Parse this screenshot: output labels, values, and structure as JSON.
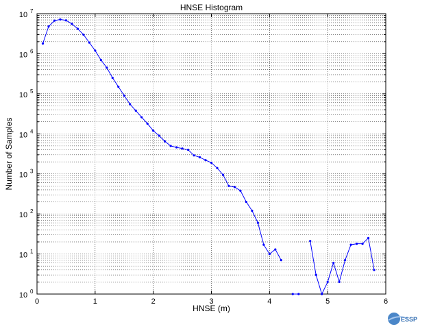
{
  "chart_data": {
    "type": "line",
    "title": "HNSE Histogram",
    "xlabel": "HNSE (m)",
    "ylabel": "Number of Samples",
    "xlim": [
      0,
      6
    ],
    "ylim": [
      1,
      10000000
    ],
    "yscale": "log",
    "x_ticks": [
      "0",
      "1",
      "2",
      "3",
      "4",
      "5",
      "6"
    ],
    "y_tick_exponents": [
      "0",
      "1",
      "2",
      "3",
      "4",
      "5",
      "6",
      "7"
    ],
    "y_tick_base": "10",
    "grid": "dotted major and minor",
    "series": [
      {
        "color": "#0000ff",
        "marker": "dot",
        "segments": [
          [
            [
              0.1,
              1800000
            ],
            [
              0.2,
              4800000
            ],
            [
              0.3,
              6700000
            ],
            [
              0.4,
              7200000
            ],
            [
              0.5,
              6800000
            ],
            [
              0.6,
              5600000
            ],
            [
              0.7,
              4200000
            ],
            [
              0.8,
              3000000
            ],
            [
              0.9,
              1900000
            ],
            [
              1.0,
              1200000
            ],
            [
              1.1,
              700000
            ],
            [
              1.2,
              450000
            ],
            [
              1.3,
              250000
            ],
            [
              1.4,
              150000
            ],
            [
              1.5,
              90000
            ],
            [
              1.6,
              55000
            ],
            [
              1.7,
              38000
            ],
            [
              1.8,
              26000
            ],
            [
              1.9,
              18000
            ],
            [
              2.0,
              12000
            ],
            [
              2.1,
              9000
            ],
            [
              2.2,
              6500
            ],
            [
              2.3,
              5000
            ],
            [
              2.4,
              4600
            ],
            [
              2.5,
              4300
            ],
            [
              2.6,
              4000
            ],
            [
              2.7,
              2900
            ],
            [
              2.8,
              2600
            ],
            [
              2.9,
              2200
            ],
            [
              3.0,
              1900
            ],
            [
              3.1,
              1400
            ],
            [
              3.2,
              950
            ],
            [
              3.3,
              500
            ],
            [
              3.4,
              470
            ],
            [
              3.5,
              380
            ],
            [
              3.6,
              200
            ],
            [
              3.7,
              120
            ],
            [
              3.8,
              60
            ],
            [
              3.9,
              17
            ],
            [
              4.0,
              10
            ],
            [
              4.1,
              13
            ],
            [
              4.2,
              7
            ]
          ],
          [
            [
              4.4,
              1
            ],
            [
              4.5,
              1
            ]
          ],
          [
            [
              4.7,
              21
            ],
            [
              4.8,
              3
            ],
            [
              4.9,
              1
            ],
            [
              5.0,
              2
            ],
            [
              5.1,
              6
            ],
            [
              5.2,
              2
            ],
            [
              5.3,
              7
            ],
            [
              5.4,
              17
            ],
            [
              5.5,
              18
            ],
            [
              5.6,
              18
            ],
            [
              5.7,
              25
            ],
            [
              5.8,
              4
            ]
          ]
        ]
      }
    ]
  },
  "logo": {
    "text": "ESSP"
  }
}
